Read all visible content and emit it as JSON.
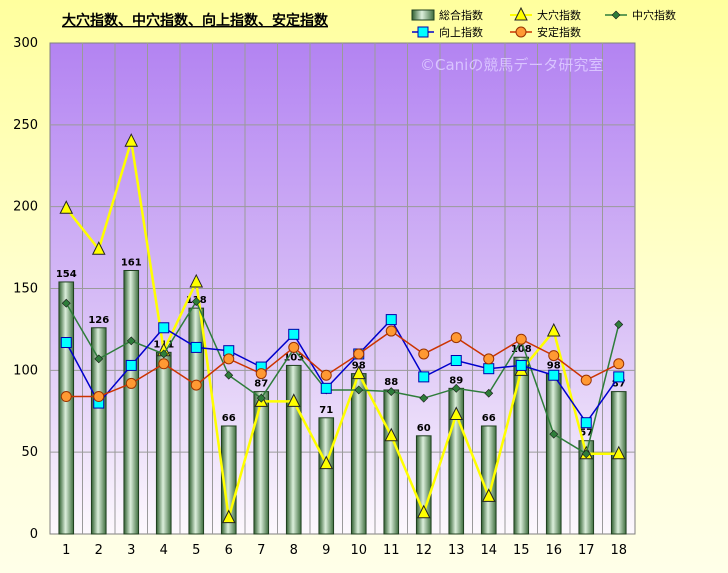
{
  "chart_data": {
    "type": "bar",
    "title": "大穴指数、中穴指数、向上指数、安定指数",
    "watermark": "©Caniの競馬データ研究室",
    "categories": [
      "1",
      "2",
      "3",
      "4",
      "5",
      "6",
      "7",
      "8",
      "9",
      "10",
      "11",
      "12",
      "13",
      "14",
      "15",
      "16",
      "17",
      "18"
    ],
    "ylim": [
      0,
      300
    ],
    "yticks": [
      0,
      50,
      100,
      150,
      200,
      250,
      300
    ],
    "grid": true,
    "legend_position": "top-right",
    "series": [
      {
        "name": "総合指数",
        "type": "bar",
        "color": "#5f9a5f",
        "values": [
          154,
          126,
          161,
          111,
          138,
          66,
          87,
          103,
          71,
          98,
          88,
          60,
          89,
          66,
          108,
          98,
          57,
          87
        ]
      },
      {
        "name": "大穴指数",
        "type": "line",
        "color": "#ffff00",
        "marker": "triangle",
        "values": [
          199,
          174,
          240,
          112,
          154,
          10,
          81,
          81,
          43,
          98,
          60,
          13,
          73,
          23,
          100,
          124,
          49,
          49
        ]
      },
      {
        "name": "中穴指数",
        "type": "line",
        "color": "#2e7d3a",
        "marker": "diamond",
        "values": [
          141,
          107,
          118,
          110,
          142,
          97,
          83,
          113,
          88,
          88,
          87,
          83,
          89,
          86,
          118,
          61,
          49,
          128
        ]
      },
      {
        "name": "向上指数",
        "type": "line",
        "color": "#0000cc",
        "marker": "square",
        "values": [
          117,
          80,
          103,
          126,
          114,
          112,
          102,
          122,
          89,
          110,
          131,
          96,
          106,
          101,
          103,
          97,
          68,
          96
        ]
      },
      {
        "name": "安定指数",
        "type": "line",
        "color": "#cc3300",
        "marker": "circle",
        "values": [
          84,
          84,
          92,
          104,
          91,
          107,
          98,
          114,
          97,
          110,
          124,
          110,
          120,
          107,
          119,
          109,
          94,
          104
        ]
      }
    ]
  }
}
